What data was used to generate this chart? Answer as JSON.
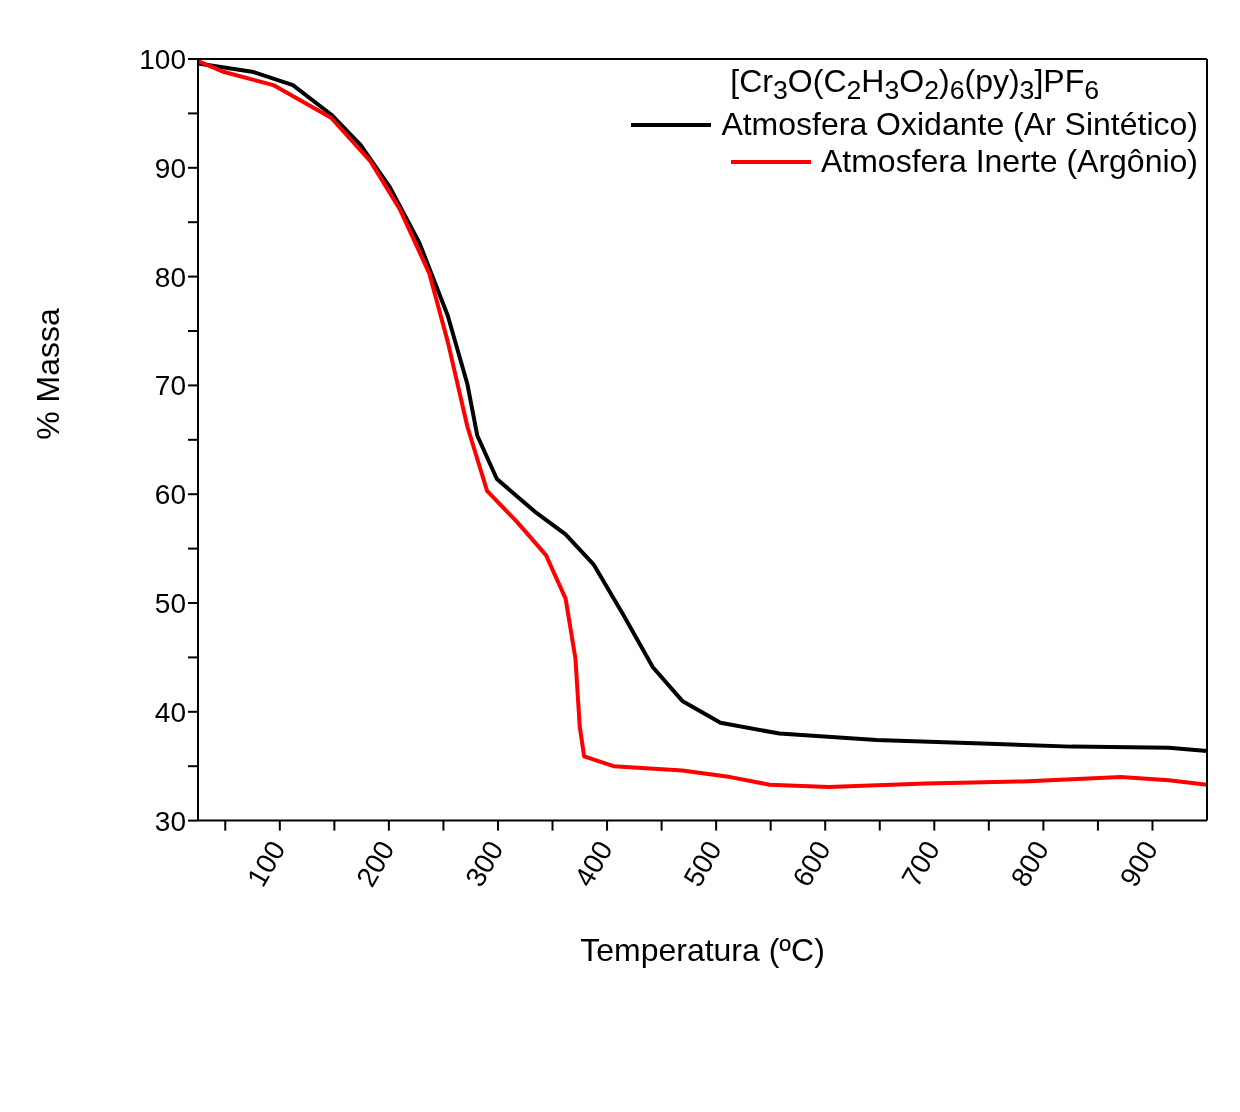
{
  "chart_data": {
    "type": "line",
    "xlabel": "Temperatura (ºC)",
    "ylabel": "% Massa",
    "legend_title": "[Cr$_{3}$O(C$_{2}$H$_{3}$O$_{2}$)$_{6}$(py)$_{3}$]PF$_{6}$",
    "legend": "top right",
    "marker": "none",
    "line_style": "solid",
    "xlim": [
      25,
      950
    ],
    "ylim": [
      30,
      100
    ],
    "xticks": [
      {
        "value": 50,
        "label": null
      },
      100,
      {
        "value": 150,
        "label": null
      },
      200,
      {
        "value": 250,
        "label": null
      },
      300,
      {
        "value": 350,
        "label": null
      },
      400,
      {
        "value": 450,
        "label": null
      },
      500,
      {
        "value": 550,
        "label": null
      },
      600,
      {
        "value": 650,
        "label": null
      },
      700,
      {
        "value": 750,
        "label": null
      },
      800,
      {
        "value": 850,
        "label": null
      },
      900
    ],
    "yticks": [
      30,
      {
        "value": 35,
        "label": null
      },
      40,
      {
        "value": 45,
        "label": null
      },
      50,
      {
        "value": 55,
        "label": null
      },
      60,
      {
        "value": 65,
        "label": null
      },
      70,
      {
        "value": 75,
        "label": null
      },
      80,
      {
        "value": 85,
        "label": null
      },
      90,
      {
        "value": 95,
        "label": null
      },
      100
    ],
    "series": [
      {
        "name": "Atmosfera Oxidante (Ar Sintético)",
        "color": "#000000",
        "x": [
          25,
          76,
          112,
          147,
          174,
          201,
          228,
          254,
          272,
          281,
          299,
          335,
          362,
          388,
          415,
          442,
          469,
          504,
          558,
          647,
          737,
          826,
          915,
          950
        ],
        "values": [
          99.6,
          98.8,
          97.6,
          94.9,
          92.1,
          88.2,
          83.1,
          76.4,
          70.1,
          65.4,
          61.4,
          58.3,
          56.3,
          53.5,
          48.9,
          44.1,
          41,
          39,
          38,
          37.4,
          37.1,
          36.8,
          36.7,
          36.4
        ]
      },
      {
        "name": "Atmosfera Inerte (Argônio)",
        "color": "#ff0000",
        "x": [
          25,
          49,
          94,
          147,
          183,
          210,
          237,
          254,
          272,
          290,
          317,
          344,
          362,
          371,
          375,
          379,
          406,
          469,
          513,
          549,
          603,
          692,
          781,
          871,
          915,
          950
        ],
        "values": [
          99.8,
          98.8,
          97.6,
          94.6,
          90.6,
          86.2,
          80.3,
          74,
          66.2,
          60.3,
          57.5,
          54.4,
          50.4,
          44.9,
          38.6,
          35.9,
          35,
          34.6,
          34,
          33.3,
          33.1,
          33.4,
          33.6,
          34,
          33.7,
          33.3
        ]
      }
    ]
  }
}
